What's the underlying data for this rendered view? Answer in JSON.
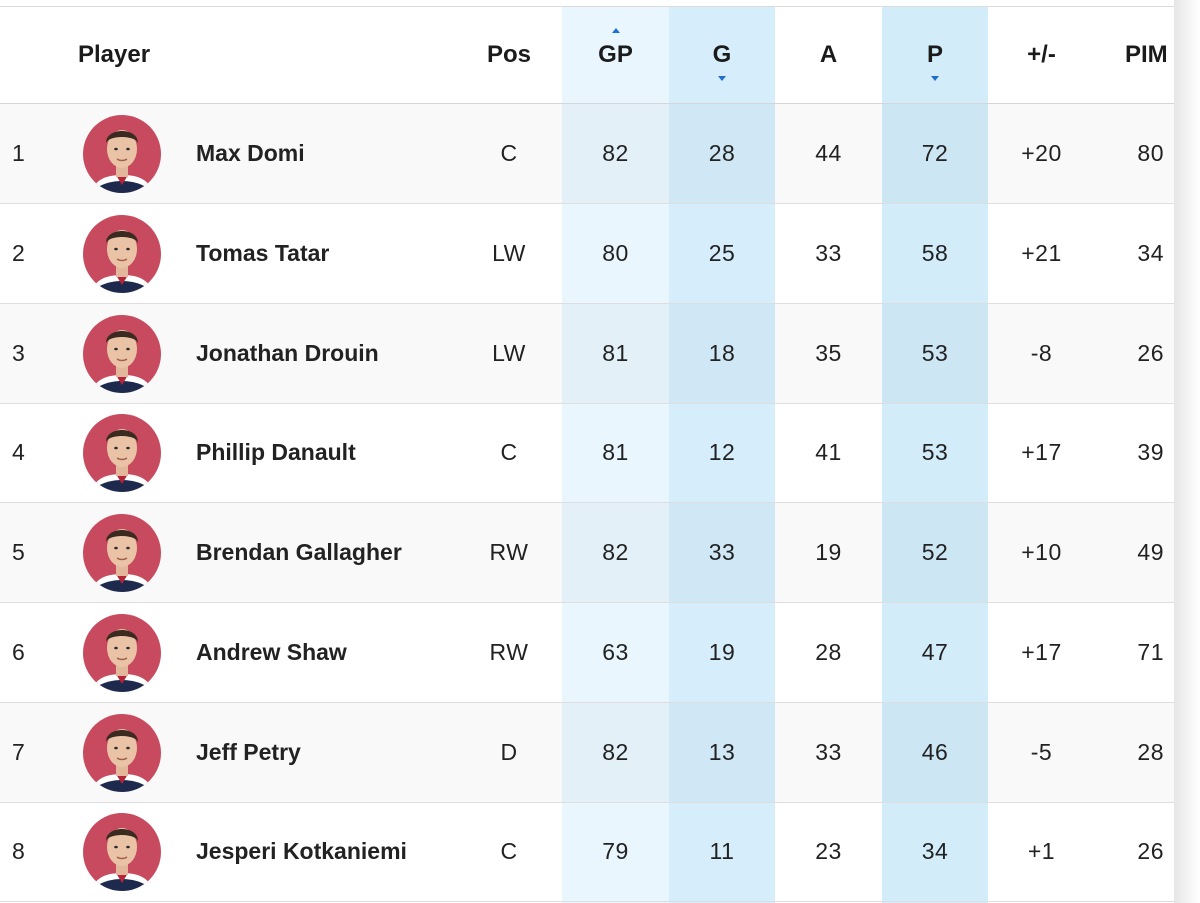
{
  "header": {
    "player": "Player",
    "pos": "Pos",
    "gp": "GP",
    "g": "G",
    "a": "A",
    "p": "P",
    "plus_minus": "+/-",
    "pim": "PIM"
  },
  "sort": {
    "gp": "up",
    "g": "down",
    "p": "down"
  },
  "colors": {
    "highlight_light": "#eaf6fd",
    "highlight_mid": "#d6eefb",
    "sort_arrow": "#1e6fd0",
    "avatar_bg": "#c84a5e"
  },
  "rows": [
    {
      "rank": "1",
      "name": "Max Domi",
      "pos": "C",
      "gp": "82",
      "g": "28",
      "a": "44",
      "p": "72",
      "pm": "+20",
      "pim": "80"
    },
    {
      "rank": "2",
      "name": "Tomas Tatar",
      "pos": "LW",
      "gp": "80",
      "g": "25",
      "a": "33",
      "p": "58",
      "pm": "+21",
      "pim": "34"
    },
    {
      "rank": "3",
      "name": "Jonathan Drouin",
      "pos": "LW",
      "gp": "81",
      "g": "18",
      "a": "35",
      "p": "53",
      "pm": "-8",
      "pim": "26"
    },
    {
      "rank": "4",
      "name": "Phillip Danault",
      "pos": "C",
      "gp": "81",
      "g": "12",
      "a": "41",
      "p": "53",
      "pm": "+17",
      "pim": "39"
    },
    {
      "rank": "5",
      "name": "Brendan Gallagher",
      "pos": "RW",
      "gp": "82",
      "g": "33",
      "a": "19",
      "p": "52",
      "pm": "+10",
      "pim": "49"
    },
    {
      "rank": "6",
      "name": "Andrew Shaw",
      "pos": "RW",
      "gp": "63",
      "g": "19",
      "a": "28",
      "p": "47",
      "pm": "+17",
      "pim": "71"
    },
    {
      "rank": "7",
      "name": "Jeff Petry",
      "pos": "D",
      "gp": "82",
      "g": "13",
      "a": "33",
      "p": "46",
      "pm": "-5",
      "pim": "28"
    },
    {
      "rank": "8",
      "name": "Jesperi Kotkaniemi",
      "pos": "C",
      "gp": "79",
      "g": "11",
      "a": "23",
      "p": "34",
      "pm": "+1",
      "pim": "26"
    }
  ]
}
